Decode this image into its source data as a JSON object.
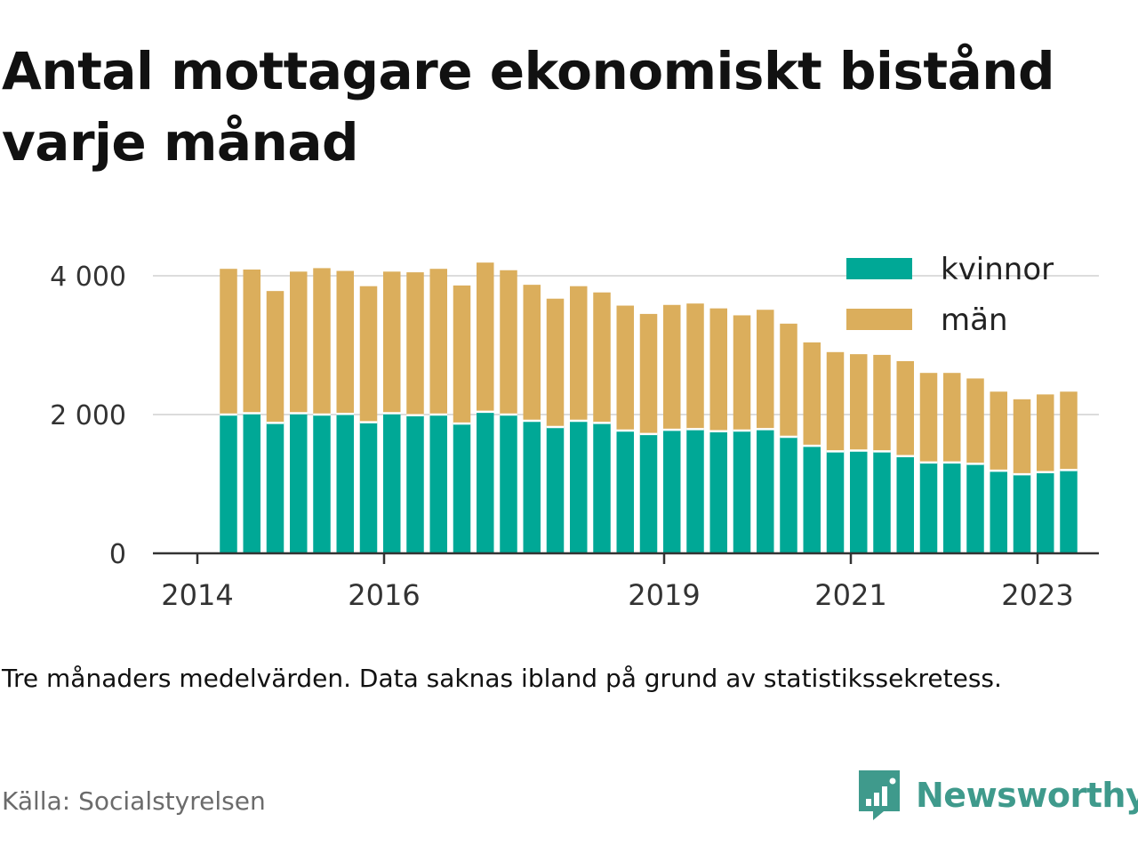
{
  "title": "Antal mottagare ekonomiskt bistånd varje månad",
  "note": "Tre månaders medelvärden. Data saknas ibland på grund av statistikssekretess.",
  "source": "Källa: Socialstyrelsen",
  "brand": {
    "name": "Newsworthy",
    "icon": "newsworthy-logo-icon",
    "color": "#3f9a8c"
  },
  "chart_data": {
    "type": "bar",
    "stacked": true,
    "title": "Antal mottagare ekonomiskt bistånd varje månad",
    "xlabel": "",
    "ylabel": "",
    "ylim": [
      0,
      4000
    ],
    "grid": true,
    "legend_position": "top-right",
    "yticks": [
      0,
      2000,
      4000
    ],
    "ytick_labels": [
      "0",
      "2 000",
      "4 000"
    ],
    "xtick_labels": [
      "2014",
      "2016",
      "2019",
      "2021",
      "2023"
    ],
    "categories": [
      "2014-05",
      "2014-08",
      "2014-11",
      "2015-02",
      "2015-05",
      "2015-08",
      "2015-11",
      "2016-02",
      "2016-05",
      "2016-08",
      "2016-11",
      "2017-02",
      "2017-05",
      "2017-08",
      "2017-11",
      "2018-02",
      "2018-05",
      "2018-08",
      "2018-11",
      "2019-02",
      "2019-05",
      "2019-08",
      "2019-11",
      "2020-02",
      "2020-05",
      "2020-08",
      "2020-11",
      "2021-02",
      "2021-05",
      "2021-08",
      "2021-11",
      "2022-02",
      "2022-05",
      "2022-08",
      "2022-11",
      "2023-02",
      "2023-05"
    ],
    "series": [
      {
        "name": "kvinnor",
        "color": "#00a896",
        "values": [
          2000,
          2020,
          1880,
          2020,
          2000,
          2010,
          1890,
          2020,
          1990,
          2000,
          1870,
          2040,
          2000,
          1910,
          1820,
          1910,
          1880,
          1770,
          1720,
          1780,
          1790,
          1760,
          1770,
          1790,
          1680,
          1550,
          1470,
          1480,
          1470,
          1400,
          1310,
          1310,
          1290,
          1190,
          1140,
          1170,
          1200
        ]
      },
      {
        "name": "män",
        "color": "#dbae5c",
        "values": [
          2100,
          2070,
          1900,
          2040,
          2110,
          2060,
          1960,
          2040,
          2060,
          2100,
          1990,
          2150,
          2080,
          1960,
          1850,
          1940,
          1880,
          1800,
          1730,
          1800,
          1810,
          1770,
          1660,
          1720,
          1630,
          1490,
          1430,
          1390,
          1390,
          1370,
          1290,
          1290,
          1230,
          1140,
          1080,
          1120,
          1130
        ]
      }
    ]
  }
}
